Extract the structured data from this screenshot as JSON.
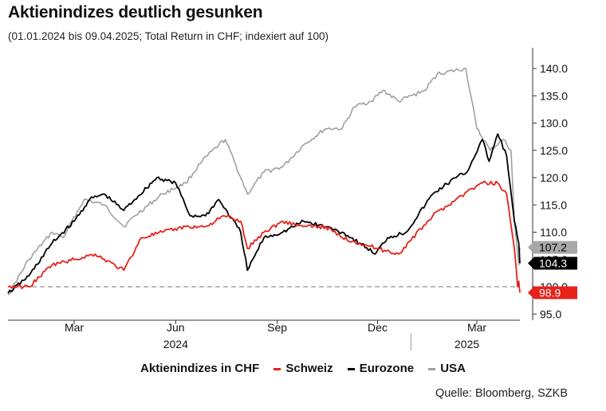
{
  "header": {
    "title": "Aktienindizes deutlich gesunken",
    "subtitle": "(01.01.2024 bis 09.04.2025; Total Return in CHF; indexiert auf 100)"
  },
  "legend": {
    "heading": "Aktienindizes in CHF",
    "items": [
      {
        "label": "Schweiz",
        "color": "#e8211b"
      },
      {
        "label": "Eurozone",
        "color": "#000000"
      },
      {
        "label": "USA",
        "color": "#a0a0a0"
      }
    ]
  },
  "source": "Quelle: Bloomberg, SZKB",
  "chart_data": {
    "type": "line",
    "x_range": [
      "2024-01-01",
      "2025-04-09"
    ],
    "ylim": [
      93,
      143
    ],
    "y_ticks": [
      95,
      100,
      105,
      110,
      115,
      120,
      125,
      130,
      135,
      140
    ],
    "y_tick_labels": [
      "95.0",
      "100.0",
      "105.0",
      "110.0",
      "115.0",
      "120.0",
      "125.0",
      "130.0",
      "135.0",
      "140.0"
    ],
    "x_ticks": [
      {
        "date": "2024-03-01",
        "label": "Mar"
      },
      {
        "date": "2024-06-01",
        "label": "Jun"
      },
      {
        "date": "2024-09-01",
        "label": "Sep"
      },
      {
        "date": "2024-12-01",
        "label": "Dec"
      },
      {
        "date": "2025-03-01",
        "label": "Mar"
      }
    ],
    "year_labels": [
      {
        "date": "2024-06-01",
        "label": "2024"
      },
      {
        "date": "2025-02-20",
        "label": "2025"
      }
    ],
    "year_separator": "2025-01-01",
    "reference_line": 100,
    "grid": false,
    "series": [
      {
        "name": "USA",
        "color": "#a0a0a0",
        "end_label": "107.2",
        "x": [
          "2024-01-01",
          "2024-01-20",
          "2024-02-10",
          "2024-02-20",
          "2024-03-10",
          "2024-03-28",
          "2024-04-15",
          "2024-04-25",
          "2024-05-20",
          "2024-06-10",
          "2024-06-25",
          "2024-07-10",
          "2024-07-16",
          "2024-07-30",
          "2024-08-05",
          "2024-08-20",
          "2024-09-06",
          "2024-09-25",
          "2024-10-15",
          "2024-10-30",
          "2024-11-10",
          "2024-11-25",
          "2024-12-06",
          "2024-12-20",
          "2025-01-13",
          "2025-01-24",
          "2025-02-19",
          "2025-03-01",
          "2025-03-13",
          "2025-03-25",
          "2025-04-01",
          "2025-04-04",
          "2025-04-08",
          "2025-04-09"
        ],
        "y": [
          98.5,
          105,
          110,
          109,
          116,
          115,
          111,
          113,
          117,
          119,
          123,
          126,
          127,
          120,
          117,
          121,
          122,
          126,
          129,
          129,
          133,
          134,
          136,
          134,
          136,
          139,
          140,
          129,
          125,
          127,
          125,
          112,
          104,
          107.2
        ]
      },
      {
        "name": "Eurozone",
        "color": "#000000",
        "end_label": "104.3",
        "x": [
          "2024-01-01",
          "2024-01-20",
          "2024-02-10",
          "2024-03-01",
          "2024-03-15",
          "2024-03-28",
          "2024-04-15",
          "2024-04-25",
          "2024-05-15",
          "2024-06-01",
          "2024-06-14",
          "2024-06-28",
          "2024-07-10",
          "2024-07-30",
          "2024-08-05",
          "2024-08-20",
          "2024-09-06",
          "2024-09-25",
          "2024-10-15",
          "2024-10-30",
          "2024-11-15",
          "2024-11-29",
          "2024-12-10",
          "2024-12-27",
          "2025-01-20",
          "2025-02-10",
          "2025-02-20",
          "2025-03-06",
          "2025-03-12",
          "2025-03-20",
          "2025-03-28",
          "2025-04-04",
          "2025-04-08",
          "2025-04-09"
        ],
        "y": [
          98.8,
          102,
          108,
          112,
          116,
          117,
          114,
          116,
          120,
          119,
          113,
          113,
          116,
          110,
          103,
          109,
          110,
          112,
          111,
          110,
          108,
          106,
          109,
          110,
          117,
          120,
          121,
          127,
          123,
          128,
          124,
          112,
          108,
          104.3
        ]
      },
      {
        "name": "Schweiz",
        "color": "#e8211b",
        "end_label": "98.9",
        "x": [
          "2024-01-01",
          "2024-01-20",
          "2024-02-10",
          "2024-03-01",
          "2024-03-20",
          "2024-04-15",
          "2024-05-01",
          "2024-05-20",
          "2024-06-10",
          "2024-06-28",
          "2024-07-15",
          "2024-07-30",
          "2024-08-05",
          "2024-08-20",
          "2024-09-06",
          "2024-09-25",
          "2024-10-15",
          "2024-10-30",
          "2024-11-15",
          "2024-12-01",
          "2024-12-20",
          "2025-01-20",
          "2025-02-10",
          "2025-02-25",
          "2025-03-06",
          "2025-03-20",
          "2025-03-28",
          "2025-04-04",
          "2025-04-07",
          "2025-04-08",
          "2025-04-09"
        ],
        "y": [
          100,
          100,
          104,
          105,
          106,
          103,
          109,
          110,
          111,
          111,
          113,
          112,
          107,
          110,
          112,
          111,
          111,
          109,
          108,
          107,
          106,
          113,
          116,
          118,
          119,
          119,
          117,
          107,
          100,
          101,
          98.9
        ]
      }
    ]
  }
}
